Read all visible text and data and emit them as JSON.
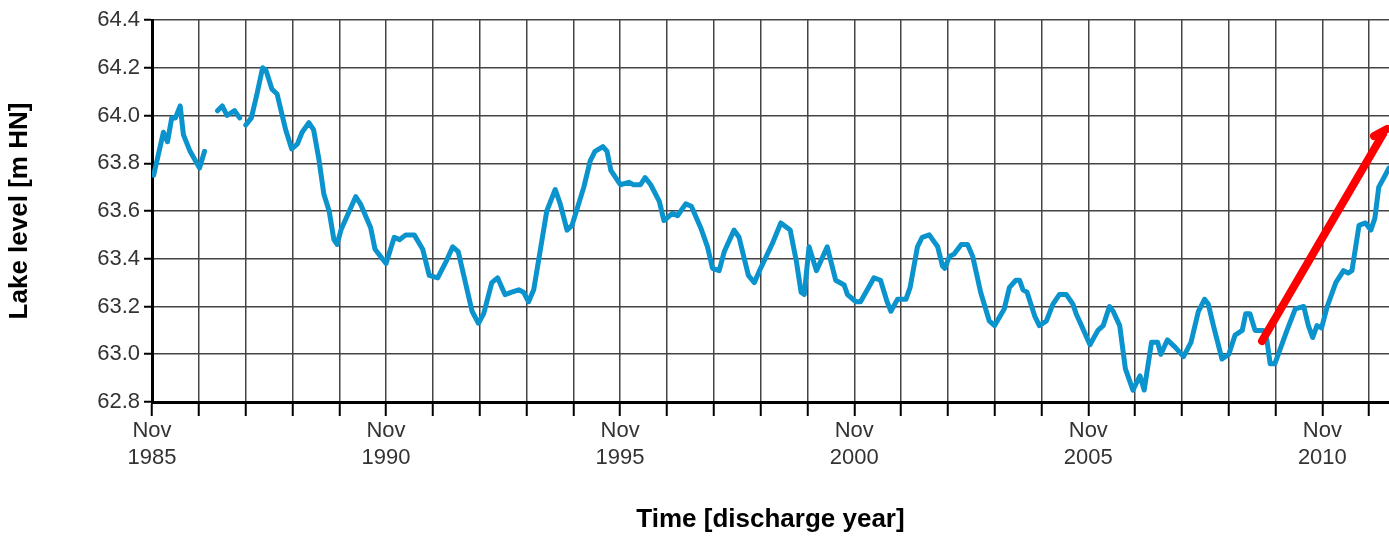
{
  "chart_data": {
    "type": "line",
    "xlabel": "Time [discharge year]",
    "ylabel": "Lake level [m HN]",
    "xlim": [
      "1985-11-01",
      "2012-04-04"
    ],
    "xticks": [
      {
        "value": "1985-11-01",
        "label": "Nov 1985"
      },
      {
        "value": "1986-11-01",
        "label": null
      },
      {
        "value": "1987-11-01",
        "label": null
      },
      {
        "value": "1988-11-01",
        "label": null
      },
      {
        "value": "1989-11-01",
        "label": null
      },
      {
        "value": "1990-11-01",
        "label": "Nov 1990"
      },
      {
        "value": "1991-11-01",
        "label": null
      },
      {
        "value": "1992-11-01",
        "label": null
      },
      {
        "value": "1993-11-01",
        "label": null
      },
      {
        "value": "1994-11-01",
        "label": null
      },
      {
        "value": "1995-11-01",
        "label": "Nov 1995"
      },
      {
        "value": "1996-11-01",
        "label": null
      },
      {
        "value": "1997-11-01",
        "label": null
      },
      {
        "value": "1998-11-01",
        "label": null
      },
      {
        "value": "1999-11-01",
        "label": null
      },
      {
        "value": "2000-11-01",
        "label": "Nov 2000"
      },
      {
        "value": "2001-11-01",
        "label": null
      },
      {
        "value": "2002-11-01",
        "label": null
      },
      {
        "value": "2003-11-01",
        "label": null
      },
      {
        "value": "2004-11-01",
        "label": null
      },
      {
        "value": "2005-11-01",
        "label": "Nov 2005"
      },
      {
        "value": "2006-11-01",
        "label": null
      },
      {
        "value": "2007-11-01",
        "label": null
      },
      {
        "value": "2008-11-01",
        "label": null
      },
      {
        "value": "2009-11-01",
        "label": null
      },
      {
        "value": "2010-11-01",
        "label": "Nov 2010"
      },
      {
        "value": "2011-11-01",
        "label": null
      }
    ],
    "ylim": [
      62.8,
      64.4
    ],
    "yticks": [
      62.8,
      {
        "value": 63.0,
        "label": "63.0"
      },
      63.2,
      63.4,
      63.6,
      63.8,
      {
        "value": 64.0,
        "label": "64.0"
      },
      64.2,
      64.4
    ],
    "grid": true,
    "legend": false,
    "marker": "none",
    "line_style": "solid",
    "series": [
      {
        "color": "#0a93cc",
        "x": [
          "1985-11-14",
          "1986-01-29",
          "1986-03-02",
          "1986-04-04",
          "1986-05-03",
          "1986-06-09",
          "1986-07-04",
          "1986-08-25",
          "1986-11-07",
          "1986-12-16",
          "1987-02-07",
          "1987-03-27",
          "1987-05-03",
          "1987-06-09",
          "1987-08-07",
          "1987-09-16",
          "1987-10-11",
          "1987-11-03",
          "1987-12-16",
          "1988-01-29",
          "1988-03-13",
          "1988-04-08",
          "1988-05-25",
          "1988-07-04",
          "1988-09-09",
          "1988-10-26",
          "1988-12-09",
          "1989-01-15",
          "1989-03-09",
          "1989-04-15",
          "1989-05-25",
          "1989-07-04",
          "1989-08-14",
          "1989-09-20",
          "1989-10-15",
          "1989-11-14",
          "1990-03-09",
          "1990-04-15",
          "1990-05-25",
          "1990-07-04",
          "1990-08-07",
          "1990-11-01",
          "1991-01-04",
          "1991-02-14",
          "1991-04-04",
          "1991-06-09",
          "1991-08-14",
          "1991-10-04",
          "1991-12-09",
          "1992-02-14",
          "1992-04-04",
          "1992-05-17",
          "1992-07-08",
          "1992-09-02",
          "1992-10-22",
          "1992-12-02",
          "1993-02-03",
          "1993-03-20",
          "1993-05-17",
          "1993-07-08",
          "1993-09-02",
          "1993-10-08",
          "1993-11-17",
          "1993-12-27",
          "1994-03-02",
          "1994-04-08",
          "1994-06-13",
          "1994-07-22",
          "1994-09-13",
          "1994-10-22",
          "1995-01-22",
          "1995-03-13",
          "1995-04-19",
          "1995-06-20",
          "1995-07-22",
          "1995-08-21",
          "1995-11-03",
          "1996-01-08",
          "1996-02-14",
          "1996-04-08",
          "1996-05-14",
          "1996-06-27",
          "1996-09-02",
          "1996-10-08",
          "1996-12-13",
          "1997-01-22",
          "1997-03-27",
          "1997-05-10",
          "1997-07-22",
          "1997-09-13",
          "1997-10-22",
          "1997-12-13",
          "1998-01-22",
          "1998-04-08",
          "1998-05-17",
          "1998-07-29",
          "1998-09-13",
          "1998-11-01",
          "1999-01-29",
          "1999-04-08",
          "1999-06-20",
          "1999-08-07",
          "1999-09-13",
          "1999-10-08",
          "1999-11-14",
          "2000-01-11",
          "2000-04-04",
          "2000-06-09",
          "2000-08-14",
          "2000-09-09",
          "2000-11-14",
          "2000-12-20",
          "2001-04-04",
          "2001-05-25",
          "2001-07-15",
          "2001-08-14",
          "2001-10-04",
          "2001-12-09",
          "2002-01-11",
          "2002-03-09",
          "2002-04-15",
          "2002-06-09",
          "2002-08-14",
          "2002-09-20",
          "2002-10-08",
          "2002-11-14",
          "2002-12-20",
          "2003-02-14",
          "2003-04-04",
          "2003-05-14",
          "2003-07-15",
          "2003-09-20",
          "2003-11-01",
          "2004-01-15",
          "2004-02-25",
          "2004-04-15",
          "2004-05-14",
          "2004-06-09",
          "2004-07-11",
          "2004-09-09",
          "2004-10-15",
          "2004-12-09",
          "2005-01-29",
          "2005-03-20",
          "2005-05-14",
          "2005-07-04",
          "2005-07-29",
          "2005-09-09",
          "2005-11-14",
          "2006-01-15",
          "2006-02-25",
          "2006-04-15",
          "2006-05-14",
          "2006-07-04",
          "2006-08-17",
          "2006-10-15",
          "2006-12-09",
          "2007-01-11",
          "2007-03-09",
          "2007-04-26",
          "2007-05-21",
          "2007-07-11",
          "2007-09-09",
          "2007-11-14",
          "2008-01-11",
          "2008-03-09",
          "2008-04-26",
          "2008-05-25",
          "2008-07-04",
          "2008-09-09",
          "2008-11-01",
          "2008-12-20",
          "2009-02-14",
          "2009-03-13",
          "2009-04-15",
          "2009-05-25",
          "2009-07-29",
          "2009-08-25",
          "2009-09-20",
          "2009-10-26",
          "2010-01-29",
          "2010-04-04",
          "2010-06-09",
          "2010-07-15",
          "2010-08-17",
          "2010-09-20",
          "2010-10-26",
          "2010-12-09",
          "2011-02-14",
          "2011-04-15",
          "2011-05-21",
          "2011-06-20",
          "2011-08-14",
          "2011-10-04",
          "2011-11-14",
          "2011-12-16",
          "2012-01-15",
          "2012-02-25",
          "2012-04-04"
        ],
        "values": [
          63.75,
          63.93,
          63.89,
          63.99,
          63.99,
          64.04,
          63.92,
          63.85,
          63.78,
          63.85,
          null,
          64.02,
          64.04,
          64.0,
          64.02,
          63.99,
          null,
          63.96,
          63.99,
          64.09,
          64.2,
          64.19,
          64.11,
          64.09,
          63.94,
          63.86,
          63.88,
          63.93,
          63.97,
          63.94,
          63.82,
          63.67,
          63.6,
          63.48,
          63.46,
          63.52,
          63.66,
          63.63,
          63.58,
          63.53,
          63.44,
          63.38,
          63.49,
          63.48,
          63.5,
          63.5,
          63.44,
          63.33,
          63.32,
          63.39,
          63.45,
          63.43,
          63.31,
          63.18,
          63.13,
          63.17,
          63.3,
          63.32,
          63.25,
          63.26,
          63.27,
          63.26,
          63.22,
          63.27,
          63.48,
          63.6,
          63.69,
          63.63,
          63.52,
          63.54,
          63.7,
          63.81,
          63.85,
          63.87,
          63.85,
          63.77,
          63.71,
          63.72,
          63.71,
          63.71,
          63.74,
          63.71,
          63.64,
          63.56,
          63.59,
          63.58,
          63.63,
          63.62,
          63.53,
          63.45,
          63.36,
          63.35,
          63.43,
          63.52,
          63.49,
          63.33,
          63.3,
          63.36,
          63.46,
          63.55,
          63.52,
          63.39,
          63.26,
          63.25,
          63.45,
          63.35,
          63.45,
          63.31,
          63.29,
          63.25,
          63.22,
          63.22,
          63.32,
          63.31,
          63.22,
          63.18,
          63.23,
          63.23,
          63.28,
          63.45,
          63.49,
          63.5,
          63.45,
          63.37,
          63.36,
          63.41,
          63.42,
          63.46,
          63.46,
          63.41,
          63.26,
          63.14,
          63.12,
          63.19,
          63.28,
          63.31,
          63.31,
          63.27,
          63.26,
          63.16,
          63.12,
          63.14,
          63.21,
          63.25,
          63.25,
          63.21,
          63.17,
          63.12,
          63.04,
          63.1,
          63.12,
          63.2,
          63.18,
          63.12,
          62.94,
          62.85,
          62.91,
          62.85,
          63.05,
          63.05,
          63.0,
          63.06,
          63.03,
          62.99,
          63.05,
          63.18,
          63.23,
          63.21,
          63.12,
          62.98,
          63.0,
          63.08,
          63.1,
          63.17,
          63.17,
          63.1,
          63.1,
          63.06,
          62.96,
          62.96,
          63.1,
          63.19,
          63.2,
          63.12,
          63.07,
          63.12,
          63.11,
          63.2,
          63.3,
          63.35,
          63.34,
          63.35,
          63.54,
          63.55,
          63.52,
          63.57,
          63.7,
          63.74,
          63.78
        ]
      }
    ]
  }
}
